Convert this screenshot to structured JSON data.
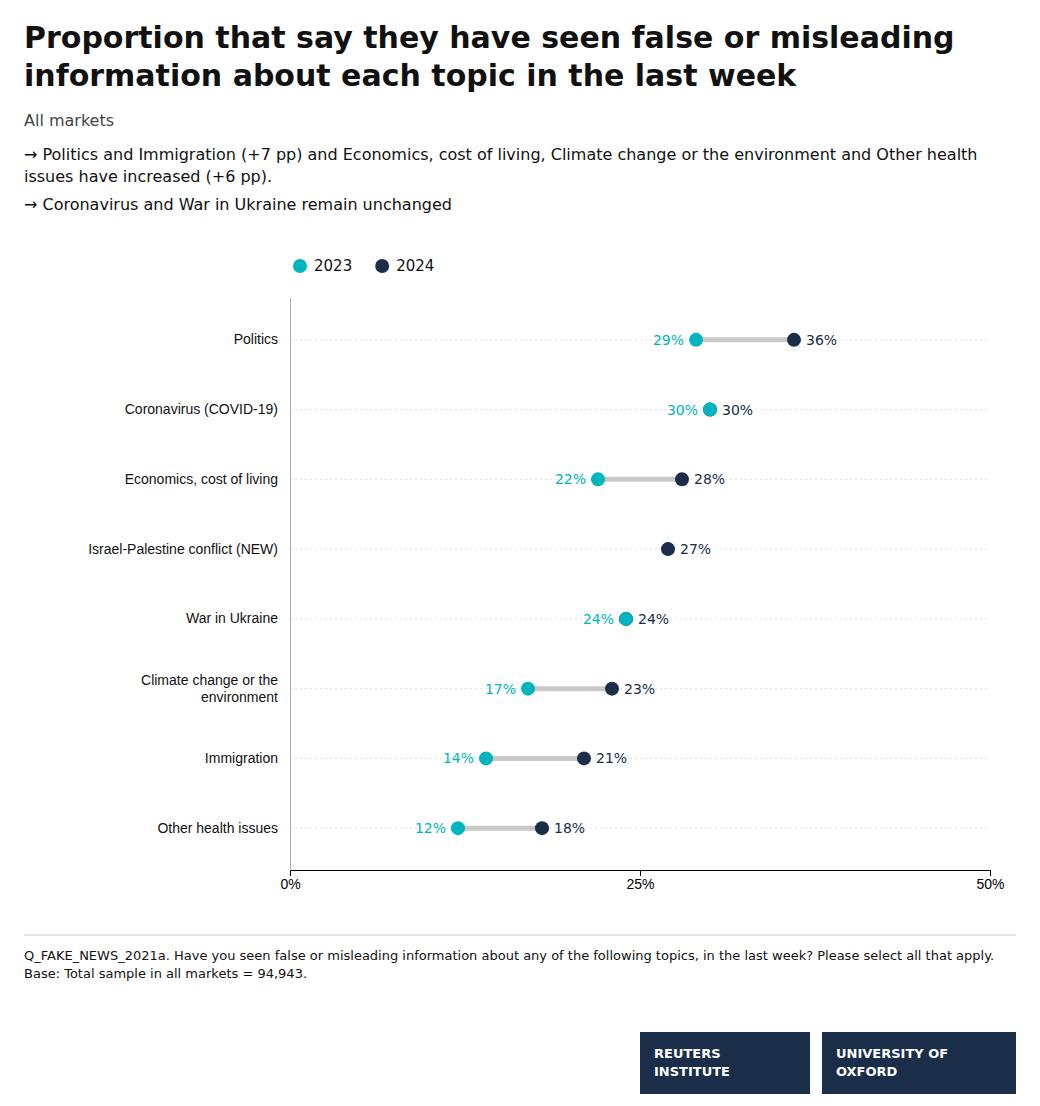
{
  "chart_data": {
    "type": "dumbbell",
    "title": "Proportion that say they have seen false or misleading information about each topic in the last week",
    "subtitle": "All markets",
    "annotations": [
      "→ Politics and Immigration (+7 pp) and Economics, cost of living, Climate change or the environment and Other health issues have increased (+6 pp).",
      "→ Coronavirus and War in Ukraine remain unchanged",
      "Q_FAKE_NEWS_2021a. Have you seen false or misleading information about any of the following topics, in the last week? Please select all that apply. Base: Total sample in all markets = 94,943.",
      "REUTERS INSTITUTE",
      "UNIVERSITY OF OXFORD"
    ],
    "categories": [
      "Politics",
      "Coronavirus (COVID-19)",
      "Economics, cost of living",
      "Israel-Palestine conflict (NEW)",
      "War in Ukraine",
      "Climate change or the\nenvironment",
      "Immigration",
      "Other health issues"
    ],
    "series": [
      {
        "name": "2023",
        "color": "#00b5be",
        "values": [
          29,
          30,
          22,
          null,
          24,
          17,
          14,
          12
        ],
        "value_labels": [
          "29%",
          "30%",
          "22%",
          null,
          "24%",
          "17%",
          "14%",
          "12%"
        ]
      },
      {
        "name": "2024",
        "color": "#1a2e4a",
        "values": [
          36,
          30,
          28,
          27,
          24,
          23,
          21,
          18
        ],
        "value_labels": [
          "36%",
          "30%",
          "28%",
          "27%",
          "24%",
          "23%",
          "21%",
          "18%"
        ]
      }
    ],
    "color": "#c8c8c8",
    "xlim": [
      0,
      50
    ],
    "xticks": [
      {
        "value": 0,
        "label": "0%"
      },
      {
        "value": 25,
        "label": "25%"
      },
      {
        "value": 50,
        "label": "50%"
      }
    ],
    "grid": true,
    "legend": "top",
    "data_labels": true
  }
}
